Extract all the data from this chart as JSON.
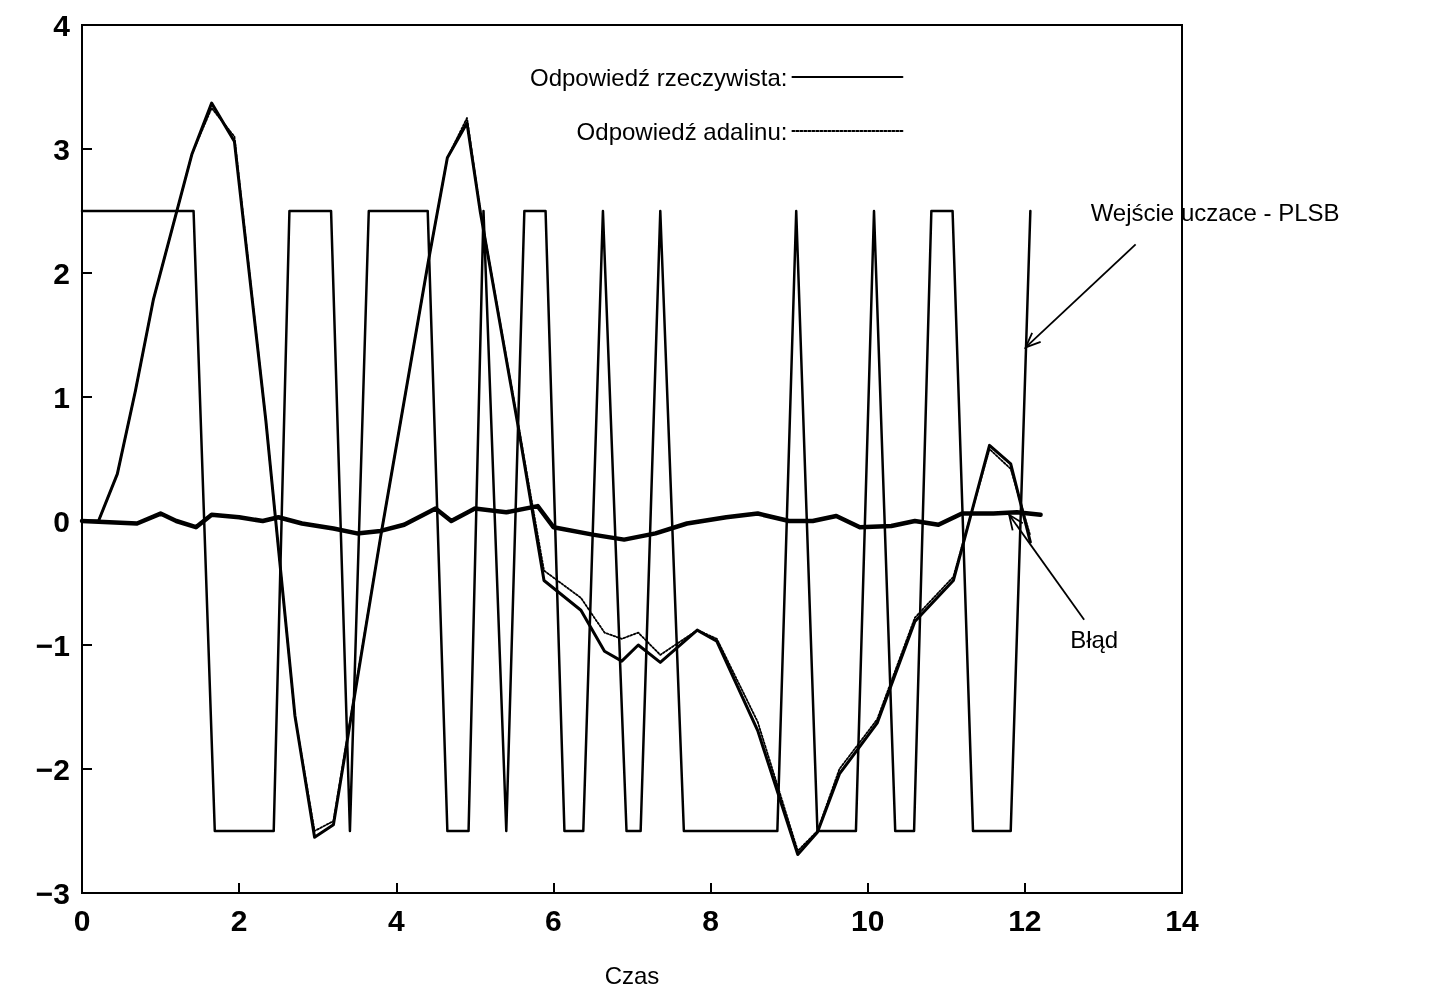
{
  "chart_data": {
    "type": "line",
    "xlabel": "Czas",
    "xlim": [
      0,
      14
    ],
    "xticks": [
      0,
      2,
      4,
      6,
      8,
      10,
      12,
      14
    ],
    "ylim": [
      -3,
      4
    ],
    "yticks": [
      -3,
      -2,
      -1,
      0,
      1,
      2,
      3,
      4
    ],
    "grid": false,
    "legend": "top",
    "marker": "none",
    "series": [
      {
        "name": "Odpowiedź rzeczywista:",
        "color": "#000000",
        "line_style": "solid",
        "x": [
          0,
          0.21,
          0.45,
          0.68,
          0.91,
          1.4,
          1.65,
          1.94,
          2.34,
          2.71,
          2.96,
          3.2,
          3.8,
          4.41,
          4.65,
          4.9,
          5.07,
          5.56,
          5.88,
          6.35,
          6.65,
          6.87,
          7.08,
          7.36,
          7.83,
          8.08,
          8.6,
          9.11,
          9.36,
          9.64,
          10.12,
          10.6,
          11.09,
          11.55,
          11.82,
          12.07
        ],
        "values": [
          0,
          0,
          0.38,
          1.05,
          1.79,
          2.96,
          3.37,
          3.06,
          0.81,
          -1.57,
          -2.55,
          -2.45,
          -0.13,
          2.1,
          2.93,
          3.21,
          2.49,
          0.73,
          -0.48,
          -0.72,
          -1.05,
          -1.13,
          -1.0,
          -1.14,
          -0.88,
          -0.97,
          -1.69,
          -2.69,
          -2.51,
          -2.04,
          -1.63,
          -0.81,
          -0.48,
          0.61,
          0.46,
          -0.17
        ]
      },
      {
        "name": "Odpowiedź adalinu:",
        "color": "#000000",
        "line_style": "dotted",
        "x": [
          0,
          0.21,
          0.45,
          0.68,
          0.91,
          1.4,
          1.65,
          1.94,
          2.34,
          2.71,
          2.96,
          3.2,
          3.8,
          4.41,
          4.65,
          4.9,
          5.07,
          5.56,
          5.88,
          6.35,
          6.65,
          6.87,
          7.08,
          7.36,
          7.83,
          8.08,
          8.6,
          9.11,
          9.36,
          9.64,
          10.12,
          10.6,
          11.09,
          11.55,
          11.82,
          12.07
        ],
        "values": [
          0,
          0,
          0.38,
          1.05,
          1.79,
          2.96,
          3.33,
          3.1,
          0.81,
          -1.57,
          -2.5,
          -2.42,
          -0.13,
          2.1,
          2.93,
          3.25,
          2.5,
          0.75,
          -0.4,
          -0.62,
          -0.9,
          -0.95,
          -0.9,
          -1.08,
          -0.88,
          -0.95,
          -1.62,
          -2.66,
          -2.5,
          -2.0,
          -1.6,
          -0.78,
          -0.45,
          0.58,
          0.42,
          -0.12
        ]
      },
      {
        "color": "#000000",
        "line_style": "solid",
        "x": [
          0,
          1.42,
          1.69,
          2.44,
          2.64,
          3.17,
          3.41,
          3.65,
          4.4,
          4.65,
          4.92,
          5.11,
          5.4,
          5.63,
          5.9,
          6.14,
          6.38,
          6.63,
          6.93,
          7.11,
          7.36,
          7.66,
          8.85,
          9.09,
          9.36,
          9.85,
          10.08,
          10.35,
          10.59,
          10.81,
          11.08,
          11.34,
          11.82,
          12.07
        ],
        "values": [
          2.5,
          2.5,
          -2.5,
          -2.5,
          2.5,
          2.5,
          -2.5,
          2.5,
          2.5,
          -2.5,
          -2.5,
          2.5,
          -2.5,
          2.5,
          2.5,
          -2.5,
          -2.5,
          2.5,
          -2.5,
          -2.5,
          2.5,
          -2.5,
          -2.5,
          2.5,
          -2.5,
          -2.5,
          2.5,
          -2.5,
          -2.5,
          2.5,
          2.5,
          -2.5,
          -2.5,
          2.5
        ]
      },
      {
        "color": "#000000",
        "line_style": "solid",
        "x": [
          0,
          0.7,
          1.0,
          1.2,
          1.45,
          1.65,
          2.0,
          2.3,
          2.5,
          2.8,
          3.2,
          3.5,
          3.8,
          4.1,
          4.5,
          4.7,
          5.0,
          5.4,
          5.8,
          6.0,
          6.5,
          6.9,
          7.3,
          7.7,
          8.2,
          8.6,
          9.0,
          9.3,
          9.6,
          9.9,
          10.3,
          10.6,
          10.9,
          11.2,
          11.6,
          11.9,
          12.2
        ],
        "values": [
          0,
          -0.02,
          0.06,
          0.0,
          -0.05,
          0.05,
          0.03,
          0.0,
          0.03,
          -0.02,
          -0.06,
          -0.1,
          -0.08,
          -0.03,
          0.1,
          0.0,
          0.1,
          0.07,
          0.12,
          -0.05,
          -0.11,
          -0.15,
          -0.1,
          -0.02,
          0.03,
          0.06,
          0.0,
          0.0,
          0.04,
          -0.05,
          -0.04,
          0.0,
          -0.03,
          0.06,
          0.06,
          0.07,
          0.05
        ]
      }
    ],
    "annotations": [
      {
        "text": "Wejście uczace - PLSB",
        "x": 12.01,
        "y": 1.4
      },
      {
        "text": "Błąd",
        "x": 11.8,
        "y": 0.05
      }
    ]
  }
}
